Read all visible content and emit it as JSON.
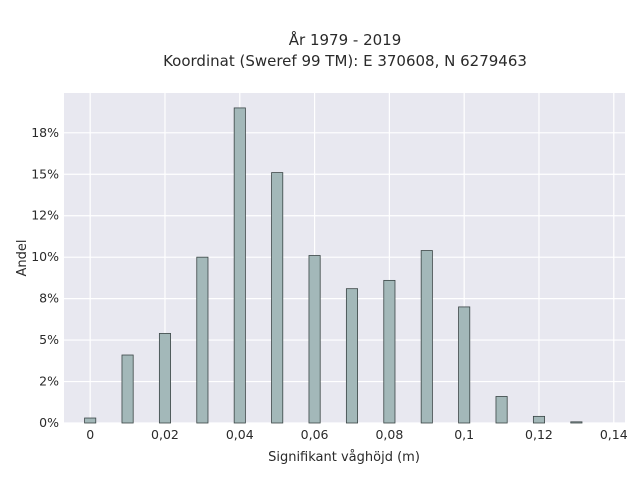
{
  "chart_data": {
    "type": "bar",
    "title": "År 1979 - 2019",
    "subtitle": "Koordinat (Sweref 99 TM): E 370608, N 6279463",
    "xlabel": "Signifikant våghöjd (m)",
    "ylabel": "Andel",
    "x": [
      0.0,
      0.01,
      0.02,
      0.03,
      0.04,
      0.05,
      0.06,
      0.07,
      0.08,
      0.09,
      0.1,
      0.11,
      0.12,
      0.13
    ],
    "values": [
      0.3,
      4.1,
      5.4,
      10.0,
      19.0,
      15.1,
      10.1,
      8.1,
      8.6,
      10.4,
      7.0,
      1.6,
      0.4,
      0.07
    ],
    "xlim": [
      -0.007,
      0.143
    ],
    "ylim": [
      0,
      19.9
    ],
    "xticks": [
      0,
      0.02,
      0.04,
      0.06,
      0.08,
      0.1,
      0.12,
      0.14
    ],
    "xtick_labels": [
      "0",
      "0,02",
      "0,04",
      "0,06",
      "0,08",
      "0,1",
      "0,12",
      "0,14"
    ],
    "yticks": [
      0,
      2.5,
      5,
      7.5,
      10,
      12.5,
      15,
      17.5
    ],
    "ytick_labels": [
      "0%",
      "2%",
      "5%",
      "8%",
      "10%",
      "12%",
      "15%",
      "18%"
    ],
    "bar_width": 0.003,
    "grid": true,
    "colors": {
      "plot_background": "#e8e8f0",
      "grid": "#ffffff",
      "bar_fill": "#a3b8b9",
      "bar_edge": "#3a4545"
    }
  }
}
